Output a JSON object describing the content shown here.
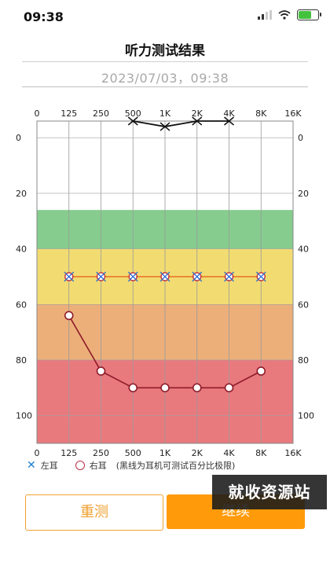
{
  "status": {
    "time": "09:38"
  },
  "header": {
    "title": "听力测试结果"
  },
  "test_date": "2023/07/03，09:38",
  "legend": {
    "left_ear": "左耳",
    "right_ear": "右耳",
    "note": "(黑线为耳机可测试百分比极限)"
  },
  "buttons": {
    "retest": "重测",
    "continue": "继续"
  },
  "watermark": "就收资源站",
  "chart_data": {
    "type": "line",
    "x": [
      "0",
      "125",
      "250",
      "500",
      "1K",
      "2K",
      "4K",
      "8K",
      "16K"
    ],
    "y_ticks": [
      0,
      20,
      40,
      60,
      80,
      100
    ],
    "ylim": [
      -6,
      110
    ],
    "zones": [
      {
        "from": 26,
        "to": 40,
        "color": "#86cc8e"
      },
      {
        "from": 40,
        "to": 60,
        "color": "#f2dc72"
      },
      {
        "from": 60,
        "to": 80,
        "color": "#ecaf7a"
      },
      {
        "from": 80,
        "to": 110,
        "color": "#e87a7e"
      }
    ],
    "series": [
      {
        "key": "left",
        "marker": "x",
        "color": "#e8792a",
        "points": [
          [
            "125",
            50
          ],
          [
            "250",
            50
          ],
          [
            "500",
            50
          ],
          [
            "1K",
            50
          ],
          [
            "2K",
            50
          ],
          [
            "4K",
            50
          ],
          [
            "8K",
            50
          ]
        ]
      },
      {
        "key": "right",
        "marker": "o",
        "color": "#8e1c2a",
        "points": [
          [
            "125",
            64
          ],
          [
            "250",
            84
          ],
          [
            "500",
            90
          ],
          [
            "1K",
            90
          ],
          [
            "2K",
            90
          ],
          [
            "4K",
            90
          ],
          [
            "8K",
            84
          ]
        ]
      },
      {
        "key": "limit",
        "marker": "x",
        "color": "#111111",
        "points": [
          [
            "500",
            -6
          ],
          [
            "1K",
            -4
          ],
          [
            "2K",
            -6
          ],
          [
            "4K",
            -6
          ]
        ]
      }
    ]
  }
}
